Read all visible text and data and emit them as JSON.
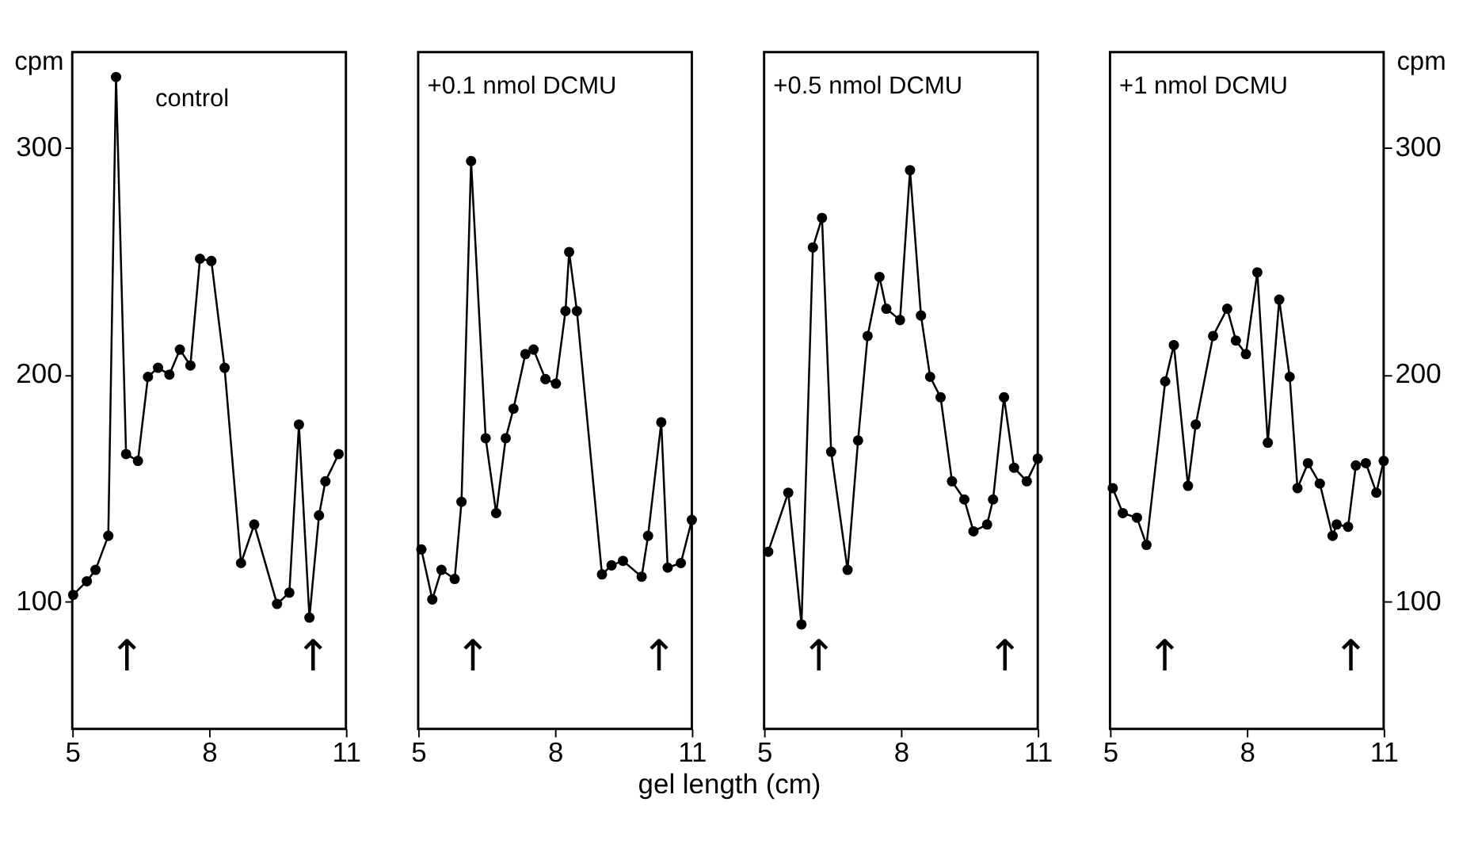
{
  "chart_data": [
    {
      "type": "line",
      "ylabel": "cpm",
      "xlim": [
        5,
        11
      ],
      "xticks": [
        5,
        8,
        11
      ],
      "ylim": [
        44,
        342
      ],
      "yticks": [
        100,
        200,
        300
      ],
      "grid": false,
      "marker": "circle",
      "line_style": "solid",
      "x": [
        5.02,
        5.32,
        5.51,
        5.79,
        5.96,
        6.18,
        6.44,
        6.66,
        6.88,
        7.13,
        7.36,
        7.59,
        7.8,
        8.05,
        8.34,
        8.7,
        8.99,
        9.49,
        9.76,
        9.97,
        10.2,
        10.41,
        10.55,
        10.84
      ],
      "series": [
        {
          "color": "#000000",
          "values": [
            103,
            109,
            114,
            129,
            331,
            165,
            162,
            199,
            203,
            200,
            211,
            204,
            251,
            250,
            203,
            117,
            134,
            99,
            104,
            178,
            93,
            138,
            153,
            165
          ]
        }
      ],
      "annotations": [
        "control",
        "↑",
        "↑"
      ]
    },
    {
      "type": "line",
      "xlim": [
        5,
        11
      ],
      "xticks": [
        5,
        8,
        11
      ],
      "ylim": [
        44,
        342
      ],
      "yticks": [
        100,
        200,
        300
      ],
      "tick_labels": "x",
      "grid": false,
      "marker": "circle",
      "line_style": "solid",
      "xlabel": "gel length (cm)",
      "x": [
        5.07,
        5.31,
        5.51,
        5.8,
        5.95,
        6.16,
        6.48,
        6.71,
        6.92,
        7.09,
        7.35,
        7.53,
        7.79,
        8.02,
        8.23,
        8.31,
        8.48,
        9.03,
        9.24,
        9.49,
        9.9,
        10.04,
        10.33,
        10.47,
        10.76,
        11.0
      ],
      "series": [
        {
          "color": "#000000",
          "values": [
            123,
            101,
            114,
            110,
            144,
            294,
            172,
            139,
            172,
            185,
            209,
            211,
            198,
            196,
            228,
            254,
            228,
            112,
            116,
            118,
            111,
            129,
            179,
            115,
            117,
            136
          ]
        }
      ],
      "annotations": [
        "+0.1 nmol DCMU",
        "↑",
        "↑"
      ]
    },
    {
      "type": "line",
      "xlim": [
        5,
        11
      ],
      "xticks": [
        5,
        8,
        11
      ],
      "ylim": [
        44,
        342
      ],
      "yticks": [
        100,
        200,
        300
      ],
      "tick_labels": "x",
      "grid": false,
      "marker": "circle",
      "line_style": "solid",
      "x": [
        5.09,
        5.53,
        5.82,
        6.07,
        6.27,
        6.47,
        6.83,
        7.06,
        7.27,
        7.53,
        7.68,
        7.98,
        8.2,
        8.44,
        8.64,
        8.87,
        9.12,
        9.39,
        9.59,
        9.89,
        10.02,
        10.26,
        10.48,
        10.76,
        11.0
      ],
      "series": [
        {
          "color": "#000000",
          "values": [
            122,
            148,
            90,
            256,
            269,
            166,
            114,
            171,
            217,
            243,
            229,
            224,
            290,
            226,
            199,
            190,
            153,
            145,
            131,
            134,
            145,
            190,
            159,
            153,
            163
          ]
        }
      ],
      "annotations": [
        "+0.5 nmol DCMU",
        "↑",
        "↑"
      ]
    },
    {
      "type": "line",
      "y2label": "cpm",
      "xlim": [
        5,
        11
      ],
      "xticks": [
        5,
        8,
        11
      ],
      "y2lim": [
        44,
        342
      ],
      "y2ticks": [
        100,
        200,
        300
      ],
      "grid": false,
      "marker": "circle",
      "line_style": "solid",
      "x": [
        5.06,
        5.28,
        5.59,
        5.8,
        6.21,
        6.4,
        6.71,
        6.88,
        7.26,
        7.57,
        7.76,
        7.98,
        8.23,
        8.46,
        8.71,
        8.94,
        9.11,
        9.34,
        9.6,
        9.88,
        9.97,
        10.22,
        10.39,
        10.61,
        10.84,
        11.0
      ],
      "series": [
        {
          "color": "#000000",
          "axis": "y2",
          "values": [
            150,
            139,
            137,
            125,
            197,
            213,
            151,
            178,
            217,
            229,
            215,
            209,
            245,
            170,
            233,
            199,
            150,
            161,
            152,
            129,
            134,
            133,
            160,
            161,
            148,
            162
          ]
        }
      ],
      "annotations": [
        "+1 nmol DCMU",
        "↑",
        "↑"
      ]
    }
  ]
}
